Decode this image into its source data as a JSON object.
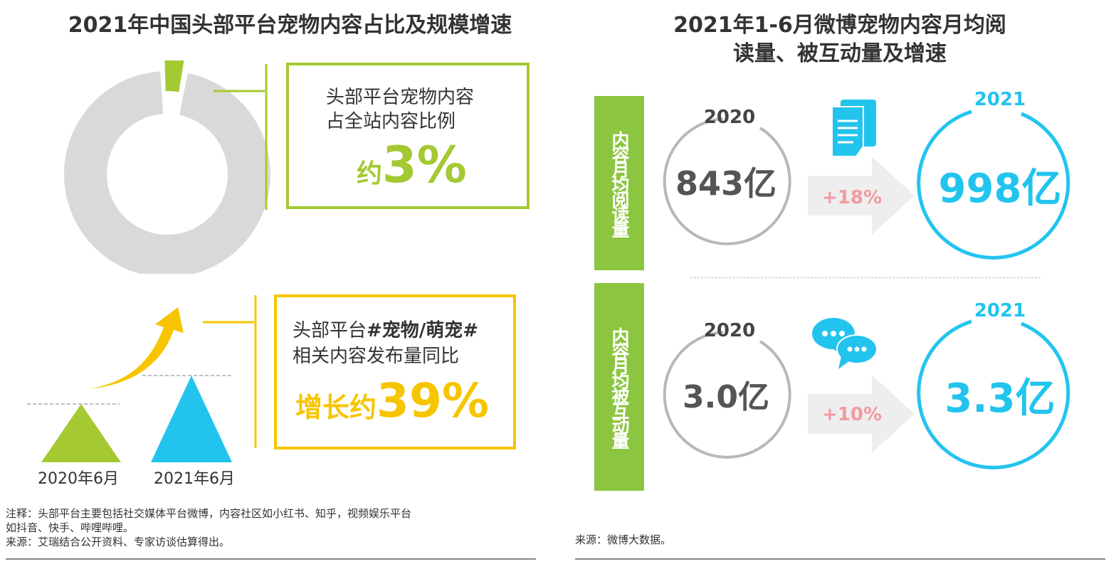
{
  "left": {
    "title": "2021年中国头部平台宠物内容占比及规模增速",
    "share_box": {
      "line1": "头部平台宠物内容",
      "line2": "占全站内容比例",
      "prefix": "约",
      "value": "3%"
    },
    "growth_box": {
      "line1_plain": "头部平台",
      "line1_bold": "#宠物/萌宠#",
      "line2": "相关内容发布量同比",
      "prefix": "增长约",
      "value": "39%"
    },
    "labels": [
      "2020年6月",
      "2021年6月"
    ],
    "note_line1": "注释：头部平台主要包括社交媒体平台微博，内容社区如小红书、知乎，视频娱乐平台",
    "note_line2": "如抖音、快手、哔哩哔哩。",
    "source": "来源：艾瑞结合公开资料、专家访谈估算得出。"
  },
  "right": {
    "title_line1": "2021年1-6月微博宠物内容月均阅",
    "title_line2": "读量、被互动量及增速",
    "band1": "内容月均阅读量",
    "band2": "内容月均被互动量",
    "row1": {
      "year_a": "2020",
      "value_a": "843亿",
      "growth": "+18%",
      "year_b": "2021",
      "value_b": "998亿"
    },
    "row2": {
      "year_a": "2020",
      "value_a": "3.0亿",
      "growth": "+10%",
      "year_b": "2021",
      "value_b": "3.3亿"
    },
    "source": "来源：微博大数据。"
  },
  "colors": {
    "green": "#a4c932",
    "yellow": "#f7c500",
    "cyan": "#22c4ee",
    "gray": "#d9d9d9",
    "band_green": "#8cc640",
    "growth_pink": "#f39aa0"
  },
  "chart_data": [
    {
      "type": "pie",
      "title": "2021年中国头部平台宠物内容占比及规模增速",
      "slices": [
        {
          "name": "头部平台宠物内容",
          "value": 3
        },
        {
          "name": "",
          "value": 97
        }
      ]
    },
    {
      "type": "bar",
      "categories": [
        "2020",
        "2021"
      ],
      "series": [
        {
          "name": "内容月均阅读量",
          "values": [
            843,
            998
          ]
        },
        {
          "name": "内容月均被互动量",
          "values": [
            3.0,
            3.3
          ]
        }
      ],
      "growth": [
        "+18%",
        "+10%"
      ]
    }
  ]
}
